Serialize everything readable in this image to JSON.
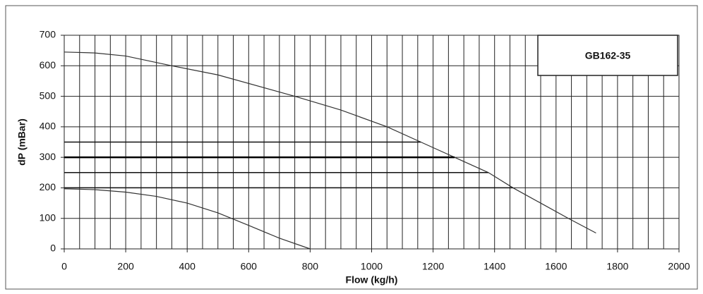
{
  "chart_data": {
    "type": "line",
    "title": "GB162-35",
    "x_label": "Flow (kg/h)",
    "y_label": "dP (mBar)",
    "xlim": [
      0,
      2000
    ],
    "ylim": [
      0,
      700
    ],
    "xticks": [
      0,
      200,
      400,
      600,
      800,
      1000,
      1200,
      1400,
      1600,
      1800,
      2000
    ],
    "yticks": [
      0,
      100,
      200,
      300,
      400,
      500,
      600,
      700
    ],
    "xgrid": [
      0,
      50,
      100,
      150,
      200,
      250,
      300,
      350,
      400,
      450,
      500,
      550,
      600,
      650,
      700,
      750,
      800,
      850,
      900,
      950,
      1000,
      1050,
      1100,
      1150,
      1200,
      1250,
      1300,
      1350,
      1400,
      1450,
      1500,
      1550,
      1600,
      1650,
      1700,
      1750,
      1800,
      1850,
      1900,
      1950,
      2000
    ],
    "grid": true,
    "series": [
      {
        "color": "#333333",
        "width": 1.2,
        "x": [
          0,
          100,
          200,
          350,
          500,
          750,
          900,
          1050,
          1160,
          1270,
          1380,
          1460,
          1550,
          1640,
          1730
        ],
        "values": [
          645,
          642,
          632,
          600,
          570,
          500,
          455,
          400,
          350,
          300,
          250,
          200,
          150,
          100,
          52
        ]
      },
      {
        "color": "#333333",
        "width": 1.2,
        "x": [
          0,
          100,
          200,
          300,
          400,
          500,
          600,
          700,
          800
        ],
        "values": [
          197,
          194,
          186,
          172,
          150,
          118,
          77,
          35,
          0
        ]
      },
      {
        "color": "#111111",
        "width": 1.5,
        "x": [
          0,
          1160
        ],
        "values": [
          350,
          350
        ]
      },
      {
        "color": "#000000",
        "width": 2.5,
        "x": [
          0,
          1270
        ],
        "values": [
          300,
          300
        ]
      },
      {
        "color": "#111111",
        "width": 1.5,
        "x": [
          0,
          1380
        ],
        "values": [
          250,
          250
        ]
      },
      {
        "color": "#111111",
        "width": 1.5,
        "x": [
          0,
          1460
        ],
        "values": [
          200,
          200
        ]
      }
    ]
  }
}
